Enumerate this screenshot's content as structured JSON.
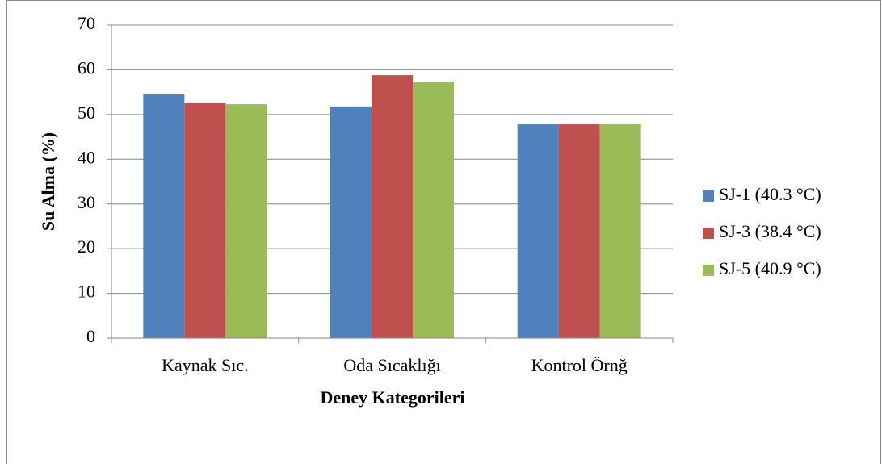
{
  "chart_data": {
    "type": "bar",
    "categories": [
      "Kaynak Sıc.",
      "Oda Sıcaklığı",
      "Kontrol Örnğ"
    ],
    "series": [
      {
        "name": "SJ-1 (40.3 °C)",
        "color": "#4f81bd",
        "values": [
          54.5,
          51.8,
          47.8
        ]
      },
      {
        "name": "SJ-3 (38.4 °C)",
        "color": "#c0504d",
        "values": [
          52.5,
          58.8,
          47.8
        ]
      },
      {
        "name": "SJ-5 (40.9 °C)",
        "color": "#9bbb59",
        "values": [
          52.3,
          57.2,
          47.8
        ]
      }
    ],
    "ylabel": "Su Alma (%)",
    "xlabel": "Deney Kategorileri",
    "ylim": [
      0,
      70
    ],
    "yticks": [
      0,
      10,
      20,
      30,
      40,
      50,
      60,
      70
    ],
    "grid": true,
    "legend": "right"
  }
}
